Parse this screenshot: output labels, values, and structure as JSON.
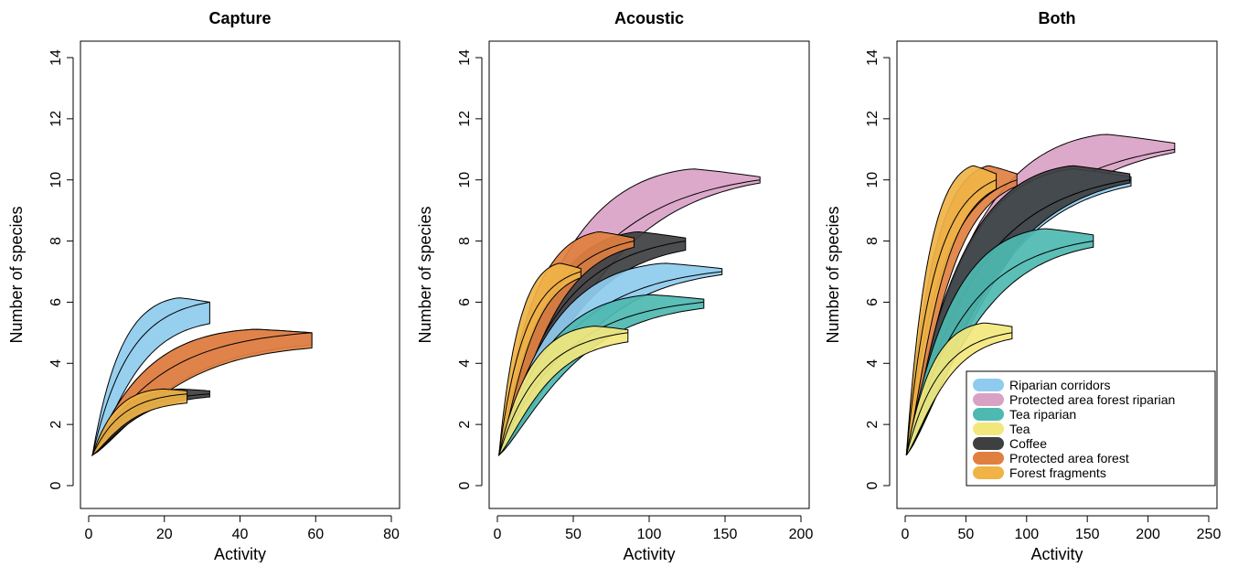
{
  "chart_data": [
    {
      "type": "area",
      "title": "Capture",
      "xlabel": "Activity",
      "ylabel": "Number of species",
      "xlim": [
        0,
        80
      ],
      "ylim": [
        0,
        14
      ],
      "xticks": [
        0,
        20,
        40,
        60,
        80
      ],
      "yticks": [
        0,
        2,
        4,
        6,
        8,
        10,
        12,
        14
      ],
      "series": [
        {
          "habitat": "Riparian corridors",
          "n": 32,
          "s": 6,
          "lower_end": 5.3,
          "upper_end": 6.0
        },
        {
          "habitat": "Protected area forest riparian",
          "n": 59,
          "s": 5,
          "lower_end": 4.6,
          "upper_end": 5.0
        },
        {
          "habitat": "Protected area forest",
          "n": 59,
          "s": 5,
          "lower_end": 4.5,
          "upper_end": 5.0
        },
        {
          "habitat": "Coffee",
          "n": 32,
          "s": 3,
          "lower_end": 2.9,
          "upper_end": 3.1
        },
        {
          "habitat": "Forest fragments",
          "n": 26,
          "s": 3,
          "lower_end": 2.7,
          "upper_end": 3.1
        }
      ]
    },
    {
      "type": "area",
      "title": "Acoustic",
      "xlabel": "Activity",
      "ylabel": "Number of species",
      "xlim": [
        0,
        200
      ],
      "ylim": [
        0,
        14
      ],
      "xticks": [
        0,
        50,
        100,
        150,
        200
      ],
      "yticks": [
        0,
        2,
        4,
        6,
        8,
        10,
        12,
        14
      ],
      "series": [
        {
          "habitat": "Protected area forest riparian",
          "n": 173,
          "s": 10,
          "lower_end": 9.9,
          "upper_end": 10.1
        },
        {
          "habitat": "Coffee",
          "n": 124,
          "s": 8,
          "lower_end": 7.7,
          "upper_end": 8.1
        },
        {
          "habitat": "Protected area forest",
          "n": 90,
          "s": 8,
          "lower_end": 7.8,
          "upper_end": 8.1
        },
        {
          "habitat": "Riparian corridors",
          "n": 148,
          "s": 7,
          "lower_end": 6.9,
          "upper_end": 7.1
        },
        {
          "habitat": "Forest fragments",
          "n": 55,
          "s": 7,
          "lower_end": 6.8,
          "upper_end": 7.1
        },
        {
          "habitat": "Tea riparian",
          "n": 136,
          "s": 6,
          "lower_end": 5.8,
          "upper_end": 6.1
        },
        {
          "habitat": "Tea",
          "n": 86,
          "s": 5,
          "lower_end": 4.7,
          "upper_end": 5.1
        }
      ]
    },
    {
      "type": "area",
      "title": "Both",
      "xlabel": "Activity",
      "ylabel": "Number of species",
      "xlim": [
        0,
        250
      ],
      "ylim": [
        0,
        14
      ],
      "xticks": [
        0,
        50,
        100,
        150,
        200,
        250
      ],
      "yticks": [
        0,
        2,
        4,
        6,
        8,
        10,
        12,
        14
      ],
      "series": [
        {
          "habitat": "Protected area forest riparian",
          "n": 222,
          "s": 11,
          "lower_end": 10.9,
          "upper_end": 11.2
        },
        {
          "habitat": "Riparian corridors",
          "n": 186,
          "s": 10,
          "lower_end": 9.8,
          "upper_end": 10.1
        },
        {
          "habitat": "Coffee",
          "n": 185,
          "s": 10,
          "lower_end": 9.9,
          "upper_end": 10.2
        },
        {
          "habitat": "Protected area forest",
          "n": 92,
          "s": 10,
          "lower_end": 9.8,
          "upper_end": 10.2
        },
        {
          "habitat": "Forest fragments",
          "n": 75,
          "s": 10,
          "lower_end": 9.7,
          "upper_end": 10.2
        },
        {
          "habitat": "Tea riparian",
          "n": 155,
          "s": 8,
          "lower_end": 7.8,
          "upper_end": 8.2
        },
        {
          "habitat": "Tea",
          "n": 88,
          "s": 5,
          "lower_end": 4.8,
          "upper_end": 5.2
        }
      ]
    }
  ],
  "legend": {
    "placement": "bottom-right of panel 3",
    "entries": [
      {
        "label": "Riparian corridors",
        "color": "#8ecbee"
      },
      {
        "label": "Protected area forest riparian",
        "color": "#d9a2c5"
      },
      {
        "label": "Tea riparian",
        "color": "#4db9b1"
      },
      {
        "label": "Tea",
        "color": "#f2e77d"
      },
      {
        "label": "Coffee",
        "color": "#3d3f40"
      },
      {
        "label": "Protected area forest",
        "color": "#e08040"
      },
      {
        "label": "Forest fragments",
        "color": "#efb346"
      }
    ]
  }
}
